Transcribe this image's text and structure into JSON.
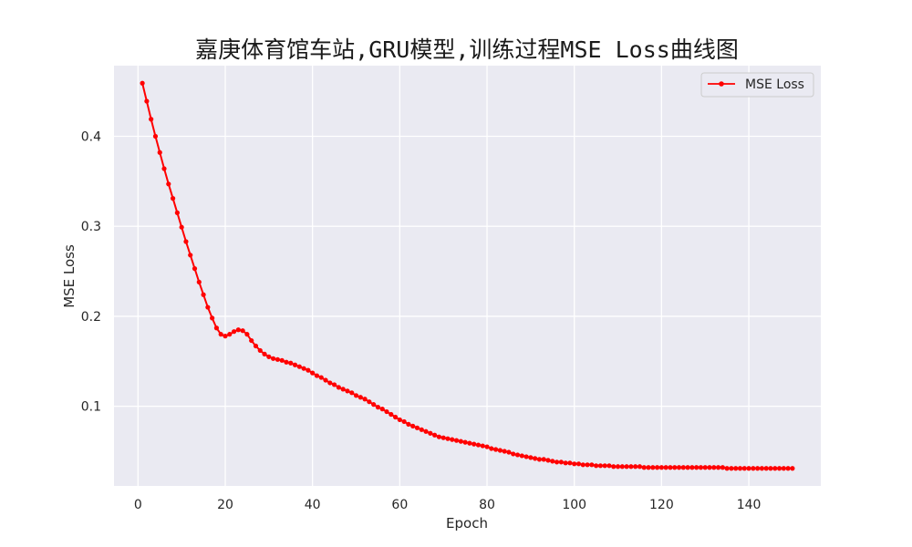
{
  "chart_data": {
    "type": "line",
    "title": "嘉庚体育馆车站,GRU模型,训练过程MSE Loss曲线图",
    "xlabel": "Epoch",
    "ylabel": "MSE Loss",
    "xlim": [
      -5.5,
      156.5
    ],
    "ylim": [
      0.0115,
      0.4785
    ],
    "xticks": [
      0,
      20,
      40,
      60,
      80,
      100,
      120,
      140
    ],
    "yticks": [
      0.1,
      0.2,
      0.3,
      0.4
    ],
    "grid": true,
    "legend_position": "top-right",
    "series": [
      {
        "name": "MSE Loss",
        "color": "#ff0000",
        "marker": "circle",
        "x": [
          1,
          2,
          3,
          4,
          5,
          6,
          7,
          8,
          9,
          10,
          11,
          12,
          13,
          14,
          15,
          16,
          17,
          18,
          19,
          20,
          21,
          22,
          23,
          24,
          25,
          26,
          27,
          28,
          29,
          30,
          31,
          32,
          33,
          34,
          35,
          36,
          37,
          38,
          39,
          40,
          41,
          42,
          43,
          44,
          45,
          46,
          47,
          48,
          49,
          50,
          51,
          52,
          53,
          54,
          55,
          56,
          57,
          58,
          59,
          60,
          61,
          62,
          63,
          64,
          65,
          66,
          67,
          68,
          69,
          70,
          71,
          72,
          73,
          74,
          75,
          76,
          77,
          78,
          79,
          80,
          81,
          82,
          83,
          84,
          85,
          86,
          87,
          88,
          89,
          90,
          91,
          92,
          93,
          94,
          95,
          96,
          97,
          98,
          99,
          100,
          101,
          102,
          103,
          104,
          105,
          106,
          107,
          108,
          109,
          110,
          111,
          112,
          113,
          114,
          115,
          116,
          117,
          118,
          119,
          120,
          121,
          122,
          123,
          124,
          125,
          126,
          127,
          128,
          129,
          130,
          131,
          132,
          133,
          134,
          135,
          136,
          137,
          138,
          139,
          140,
          141,
          142,
          143,
          144,
          145,
          146,
          147,
          148,
          149,
          150
        ],
        "values": [
          0.459,
          0.439,
          0.419,
          0.4,
          0.382,
          0.364,
          0.347,
          0.331,
          0.315,
          0.299,
          0.283,
          0.268,
          0.253,
          0.238,
          0.224,
          0.21,
          0.198,
          0.187,
          0.18,
          0.178,
          0.18,
          0.183,
          0.185,
          0.184,
          0.18,
          0.173,
          0.167,
          0.162,
          0.158,
          0.155,
          0.153,
          0.152,
          0.151,
          0.149,
          0.148,
          0.146,
          0.144,
          0.142,
          0.14,
          0.137,
          0.134,
          0.132,
          0.129,
          0.126,
          0.124,
          0.121,
          0.119,
          0.117,
          0.115,
          0.112,
          0.11,
          0.108,
          0.105,
          0.102,
          0.099,
          0.097,
          0.094,
          0.091,
          0.088,
          0.085,
          0.083,
          0.08,
          0.078,
          0.076,
          0.074,
          0.072,
          0.07,
          0.068,
          0.066,
          0.065,
          0.064,
          0.063,
          0.062,
          0.061,
          0.06,
          0.059,
          0.058,
          0.057,
          0.056,
          0.055,
          0.053,
          0.052,
          0.051,
          0.05,
          0.049,
          0.047,
          0.046,
          0.045,
          0.044,
          0.043,
          0.042,
          0.041,
          0.041,
          0.04,
          0.039,
          0.038,
          0.038,
          0.037,
          0.037,
          0.036,
          0.036,
          0.035,
          0.035,
          0.035,
          0.034,
          0.034,
          0.034,
          0.034,
          0.033,
          0.033,
          0.033,
          0.033,
          0.033,
          0.033,
          0.033,
          0.032,
          0.032,
          0.032,
          0.032,
          0.032,
          0.032,
          0.032,
          0.032,
          0.032,
          0.032,
          0.032,
          0.032,
          0.032,
          0.032,
          0.032,
          0.032,
          0.032,
          0.032,
          0.032,
          0.031,
          0.031,
          0.031,
          0.031,
          0.031,
          0.031,
          0.031,
          0.031,
          0.031,
          0.031,
          0.031,
          0.031,
          0.031,
          0.031,
          0.031,
          0.031
        ]
      }
    ]
  }
}
